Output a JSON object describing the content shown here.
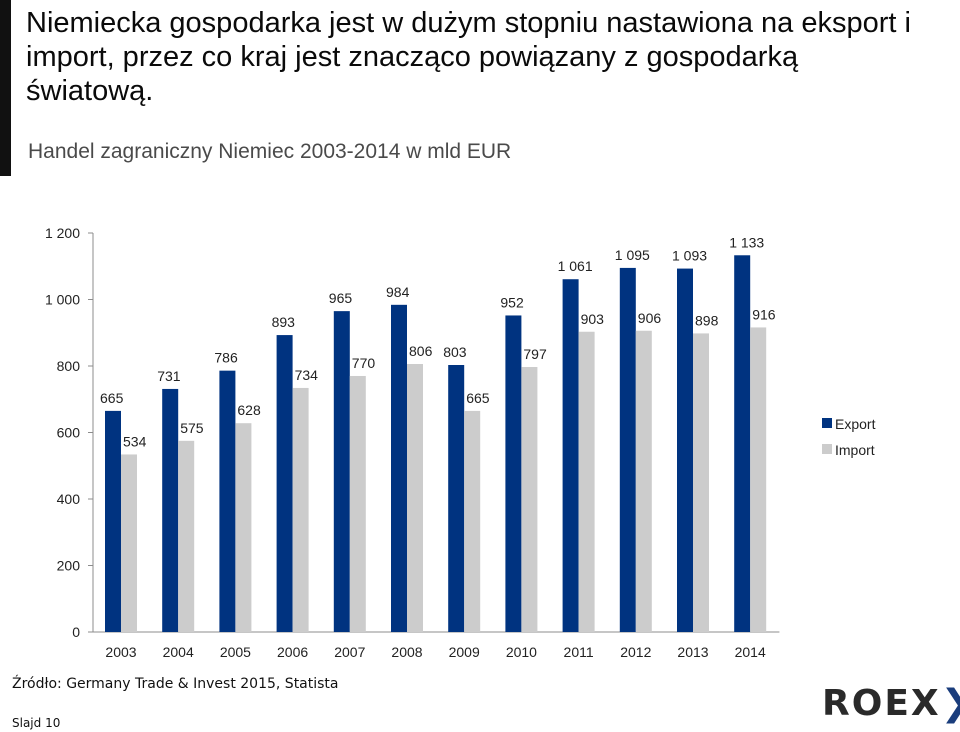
{
  "slide": {
    "title": "Niemiecka gospodarka jest w dużym stopniu nastawiona na eksport i import, przez co kraj jest znacząco powiązany z gospodarką światową.",
    "source": "Źródło: Germany Trade & Invest 2015, Statista",
    "slide_number": "Slajd 10",
    "logo_text": "ROEX",
    "logo_mark": "❯❯"
  },
  "chart_data": {
    "type": "bar",
    "title": "Handel zagraniczny Niemiec 2003-2014 w mld EUR",
    "categories": [
      "2003",
      "2004",
      "2005",
      "2006",
      "2007",
      "2008",
      "2009",
      "2010",
      "2011",
      "2012",
      "2013",
      "2014"
    ],
    "series": [
      {
        "name": "Export",
        "color": "#003380",
        "values": [
          665,
          731,
          786,
          893,
          965,
          984,
          803,
          952,
          1061,
          1095,
          1093,
          1133
        ],
        "labels": [
          "665",
          "731",
          "786",
          "893",
          "965",
          "984",
          "803",
          "952",
          "1 061",
          "1 095",
          "1 093",
          "1 133"
        ]
      },
      {
        "name": "Import",
        "color": "#cccccc",
        "values": [
          534,
          575,
          628,
          734,
          770,
          806,
          665,
          797,
          903,
          906,
          898,
          916
        ],
        "labels": [
          "534",
          "575",
          "628",
          "734",
          "770",
          "806",
          "665",
          "797",
          "903",
          "906",
          "898",
          "916"
        ]
      }
    ],
    "ylim": [
      0,
      1200
    ],
    "yticks": [
      0,
      200,
      400,
      600,
      800,
      1000,
      1200
    ],
    "ytick_labels": [
      "0",
      "200",
      "400",
      "600",
      "800",
      "1 000",
      "1 200"
    ],
    "grid": false,
    "legend_position": "right"
  }
}
